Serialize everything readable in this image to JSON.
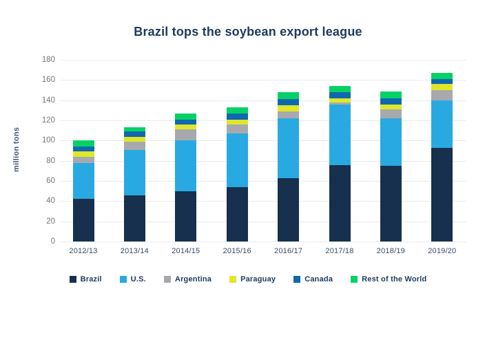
{
  "title": "Brazil tops the soybean export league",
  "y_axis": {
    "title": "million tons",
    "ticks": [
      180,
      160,
      140,
      120,
      100,
      80,
      60,
      40,
      20,
      0
    ]
  },
  "chart_data": {
    "type": "bar",
    "stacked": true,
    "title": "Brazil tops the soybean export league",
    "xlabel": "",
    "ylabel": "million tons",
    "ylim": [
      0,
      180
    ],
    "grid": true,
    "legend_position": "bottom",
    "categories": [
      "2012/13",
      "2013/14",
      "2014/15",
      "2015/16",
      "2016/17",
      "2017/18",
      "2018/19",
      "2019/20"
    ],
    "series": [
      {
        "name": "Brazil",
        "color": "#16304d",
        "values": [
          42,
          46,
          50,
          54,
          63,
          76,
          75,
          93
        ]
      },
      {
        "name": "U.S.",
        "color": "#29a9e1",
        "values": [
          36,
          45,
          50,
          53,
          59,
          60,
          47,
          47
        ]
      },
      {
        "name": "Argentina",
        "color": "#a7a9ac",
        "values": [
          6,
          8,
          11,
          9,
          7,
          2,
          9,
          10
        ]
      },
      {
        "name": "Paraguay",
        "color": "#e0e72b",
        "values": [
          5,
          5,
          5,
          5,
          6,
          4,
          5,
          6
        ]
      },
      {
        "name": "Canada",
        "color": "#1068b0",
        "values": [
          5,
          5,
          5,
          6,
          6,
          6,
          6,
          5
        ]
      },
      {
        "name": "Rest of the World",
        "color": "#05d166",
        "values": [
          6,
          4,
          6,
          6,
          7,
          6,
          7,
          6
        ]
      }
    ]
  },
  "colors": {
    "title_text": "#1d3a5f",
    "axis_tick_text": "#72787f",
    "x_label_text": "#3a4a61",
    "gridline": "#e9eaec",
    "background": "#ffffff"
  }
}
